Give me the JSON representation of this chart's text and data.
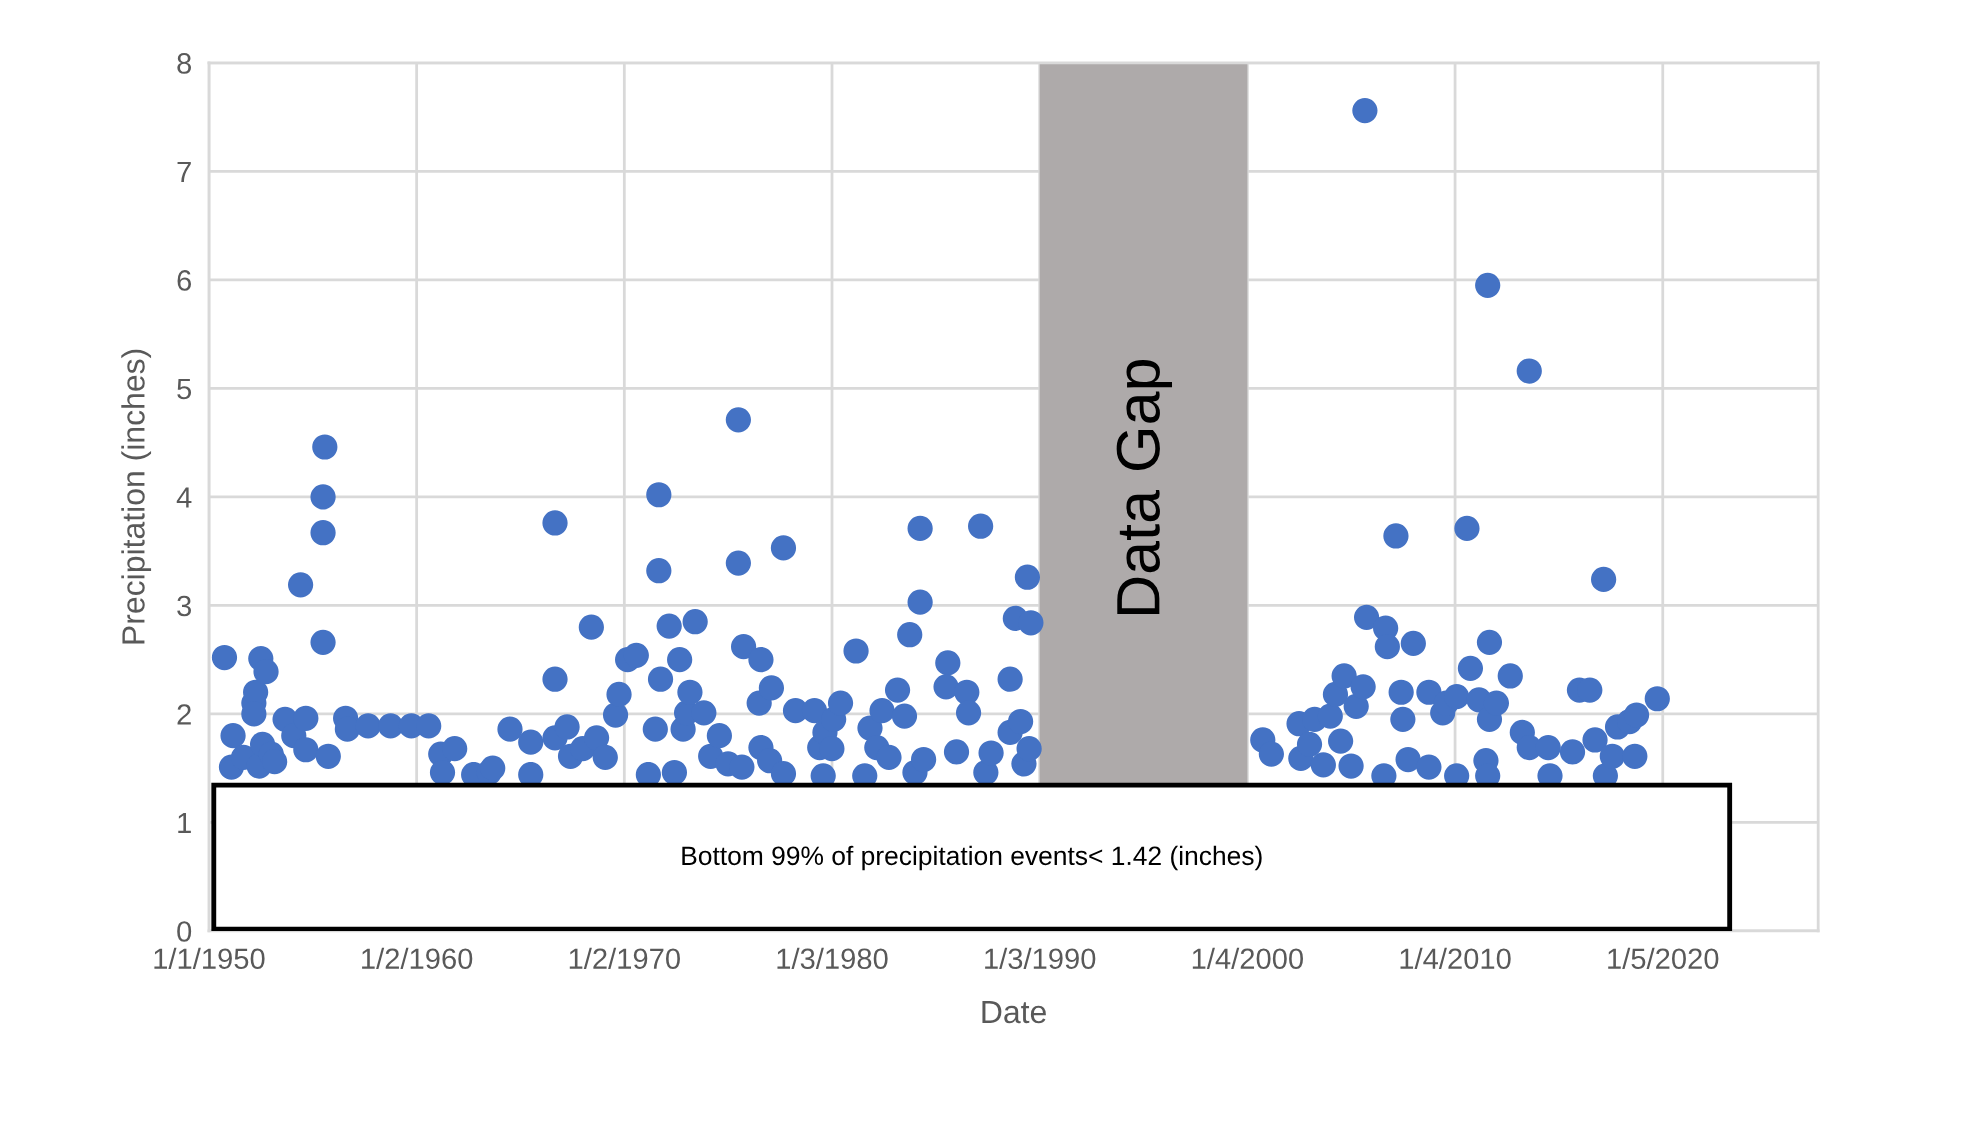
{
  "chart_data": {
    "type": "scatter",
    "xlabel": "Date",
    "ylabel": "Precipitation (inches)",
    "x": [
      "1950-10",
      "1951-02",
      "1951-03",
      "1951-09",
      "1952-03",
      "1952-04",
      "1952-03",
      "1952-07",
      "1952-10",
      "1952-06",
      "1952-08",
      "1953-01",
      "1953-03",
      "1953-09",
      "1954-02",
      "1954-06",
      "1954-09",
      "1954-09",
      "1955-07",
      "1955-07",
      "1955-07",
      "1955-08",
      "1955-10",
      "1956-08",
      "1956-09",
      "1957-09",
      "1958-10",
      "1959-10",
      "1960-08",
      "1961-03",
      "1961-04",
      "1961-11",
      "1962-10",
      "1963-07",
      "1963-09",
      "1964-07",
      "1965-07",
      "1965-07",
      "1966-09",
      "1966-09",
      "1966-09",
      "1967-04",
      "1967-06",
      "1968-01",
      "1968-06",
      "1968-09",
      "1969-02",
      "1969-08",
      "1969-10",
      "1970-03",
      "1970-08",
      "1971-03",
      "1971-07",
      "1971-09",
      "1971-09",
      "1971-10",
      "1972-03",
      "1972-06",
      "1972-09",
      "1972-11",
      "1973-01",
      "1973-03",
      "1973-06",
      "1973-11",
      "1974-03",
      "1974-08",
      "1975-01",
      "1975-07",
      "1975-07",
      "1975-09",
      "1975-10",
      "1976-08",
      "1976-07",
      "1976-08",
      "1977-02",
      "1977-01",
      "1977-09",
      "1977-09",
      "1978-04",
      "1979-03",
      "1979-06",
      "1979-08",
      "1979-09",
      "1980-01",
      "1980-02",
      "1980-06",
      "1981-03",
      "1981-08",
      "1981-11",
      "1982-03",
      "1982-06",
      "1982-10",
      "1983-03",
      "1983-07",
      "1983-10",
      "1984-01",
      "1984-04",
      "1984-04",
      "1984-06",
      "1985-08",
      "1985-07",
      "1986-01",
      "1986-07",
      "1986-08",
      "1987-03",
      "1987-06",
      "1987-09",
      "1988-08",
      "1988-08",
      "1988-11",
      "1989-02",
      "1989-04",
      "1989-06",
      "1989-08",
      "1989-07",
      "2000-10",
      "2001-03",
      "2002-07",
      "2002-08",
      "2003-01",
      "2003-04",
      "2003-09",
      "2004-01",
      "2004-04",
      "2004-07",
      "2004-09",
      "2005-01",
      "2005-04",
      "2005-08",
      "2005-09",
      "2005-10",
      "2006-08",
      "2006-09",
      "2006-10",
      "2007-03",
      "2007-06",
      "2007-07",
      "2007-10",
      "2008-01",
      "2008-10",
      "2008-10",
      "2009-06",
      "2009-08",
      "2010-02",
      "2010-02",
      "2010-08",
      "2010-10",
      "2011-03",
      "2011-07",
      "2011-08",
      "2011-09",
      "2011-09",
      "2011-08",
      "2012-01",
      "2012-09",
      "2013-04",
      "2013-08",
      "2013-08",
      "2014-07",
      "2014-08",
      "2015-09",
      "2016-01",
      "2016-07",
      "2016-10",
      "2017-03",
      "2017-04",
      "2017-08",
      "2017-11",
      "2018-06",
      "2018-09",
      "2018-10",
      "2019-10"
    ],
    "values": [
      2.52,
      1.51,
      1.8,
      1.6,
      2.1,
      2.2,
      2.0,
      2.51,
      2.39,
      1.52,
      1.72,
      1.63,
      1.56,
      1.95,
      1.8,
      3.19,
      1.96,
      1.67,
      2.66,
      3.67,
      4.0,
      4.46,
      1.61,
      1.96,
      1.86,
      1.89,
      1.89,
      1.89,
      1.89,
      1.63,
      1.46,
      1.68,
      1.44,
      1.46,
      1.5,
      1.86,
      1.74,
      1.44,
      3.76,
      2.32,
      1.78,
      1.88,
      1.61,
      1.68,
      2.8,
      1.78,
      1.6,
      1.99,
      2.18,
      2.5,
      2.54,
      1.44,
      1.86,
      4.02,
      3.32,
      2.32,
      2.81,
      1.46,
      2.5,
      1.86,
      2.01,
      2.2,
      2.85,
      2.01,
      1.61,
      1.8,
      1.54,
      4.71,
      3.39,
      1.51,
      2.62,
      2.5,
      2.1,
      1.69,
      2.24,
      1.57,
      3.53,
      1.45,
      2.03,
      2.03,
      1.69,
      1.43,
      1.83,
      1.68,
      1.95,
      2.1,
      2.58,
      1.43,
      1.87,
      1.69,
      2.03,
      1.6,
      2.22,
      1.98,
      2.73,
      1.46,
      3.03,
      3.71,
      1.58,
      2.47,
      2.25,
      1.65,
      2.2,
      2.01,
      3.73,
      1.46,
      1.64,
      2.32,
      1.83,
      2.88,
      1.93,
      1.54,
      3.26,
      2.84,
      1.68,
      1.76,
      1.63,
      1.91,
      1.59,
      1.72,
      1.95,
      1.53,
      1.98,
      2.18,
      1.75,
      2.35,
      1.52,
      2.07,
      2.25,
      7.56,
      2.89,
      1.43,
      2.79,
      2.62,
      3.64,
      2.2,
      1.95,
      1.58,
      2.65,
      1.51,
      2.2,
      2.01,
      2.1,
      1.43,
      2.16,
      3.71,
      2.42,
      2.13,
      1.57,
      5.95,
      2.66,
      1.95,
      1.43,
      2.1,
      2.35,
      1.83,
      5.16,
      1.69,
      1.69,
      1.43,
      1.65,
      2.22,
      2.22,
      1.76,
      3.24,
      1.43,
      1.61,
      1.88,
      1.93,
      1.61,
      1.99,
      2.14
    ],
    "color": "#4472c4",
    "marker": "circle",
    "xlim": [
      "1950-01-01",
      "2027-07-01"
    ],
    "xticks": [
      {
        "value": "1950-01-01",
        "label": "1/1/1950"
      },
      {
        "value": "1960-01-02",
        "label": "1/2/1960"
      },
      {
        "value": "1970-01-02",
        "label": "1/2/1970"
      },
      {
        "value": "1980-01-03",
        "label": "1/3/1980"
      },
      {
        "value": "1990-01-03",
        "label": "1/3/1990"
      },
      {
        "value": "2000-01-04",
        "label": "1/4/2000"
      },
      {
        "value": "2010-01-04",
        "label": "1/4/2010"
      },
      {
        "value": "2020-01-05",
        "label": "1/5/2020"
      }
    ],
    "ylim": [
      0,
      8
    ],
    "yticks": [
      0,
      1,
      2,
      3,
      4,
      5,
      6,
      7,
      8
    ],
    "grid": true,
    "bands": [
      {
        "axis": "x",
        "from": "1990-01-03",
        "to": "2000-01-04",
        "label": "Data Gap",
        "color": "#aeaaaa"
      }
    ],
    "annotations": [
      "Bottom 99% of precipitation events< 1.42 (inches)"
    ]
  }
}
